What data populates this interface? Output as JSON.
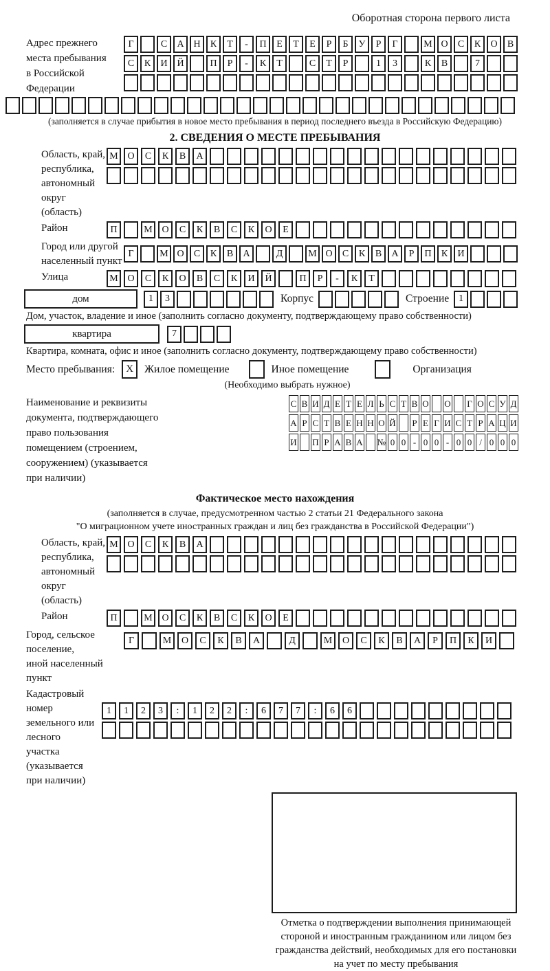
{
  "header": {
    "back_side_note": "Оборотная сторона первого листа"
  },
  "prev_address": {
    "label": "Адрес прежнего\nместа пребывания\nв Российской\nФедерации",
    "rows": [
      {
        "value": "Г САНКТ-ПЕТЕРБУРГ МОСКОВ",
        "length": 24
      },
      {
        "value": "СКИЙ ПР-КТ СТР 13 КВ 7",
        "length": 24
      },
      {
        "value": "",
        "length": 24
      },
      {
        "value": "",
        "length": 31
      }
    ],
    "note": "(заполняется в случае прибытия в новое место пребывания в период последнего въезда в Российскую Федерацию)"
  },
  "section2": {
    "title": "2. СВЕДЕНИЯ О МЕСТЕ ПРЕБЫВАНИЯ",
    "region": {
      "label": "Область, край,\nреспублика,\nавтономный\nокруг (область)",
      "rows": [
        {
          "value": "МОСКВА",
          "length": 24
        },
        {
          "value": "",
          "length": 24
        }
      ]
    },
    "district": {
      "label": "Район",
      "row": {
        "value": "П МОСКВСКОЕ",
        "length": 24
      }
    },
    "city": {
      "label": "Город или другой\nнаселенный пункт",
      "row": {
        "value": "Г МОСКВА Д МОСКВАРПКИ",
        "length": 24
      }
    },
    "street": {
      "label": "Улица",
      "row": {
        "value": "МОСКОВСКИЙ ПР-КТ",
        "length": 24
      }
    },
    "house": {
      "box_label": "дом",
      "cells": {
        "value": "13",
        "length": 8
      },
      "korpus_label": "Корпус",
      "korpus_cells": {
        "value": "",
        "length": 5
      },
      "stroenie_label": "Строение",
      "stroenie_cells": {
        "value": "1",
        "length": 4
      }
    },
    "house_note": "Дом, участок, владение и иное (заполнить согласно документу, подтверждающему право собственности)",
    "apartment": {
      "box_label": "квартира",
      "cells": {
        "value": "7",
        "length": 4
      }
    },
    "apartment_note": "Квартира, комната, офис и иное (заполнить согласно документу, подтверждающему право собственности)",
    "stay_type": {
      "label": "Место пребывания:",
      "options": [
        {
          "label": "Жилое помещение",
          "mark": "X"
        },
        {
          "label": "Иное помещение",
          "mark": ""
        },
        {
          "label": "Организация",
          "mark": ""
        }
      ],
      "hint": "(Необходимо выбрать нужное)"
    },
    "document": {
      "label": "Наименование и реквизиты\nдокумента, подтверждающего\nправо пользования\nпомещением (строением,\nсооружением) (указывается\nпри наличии)",
      "rows": [
        {
          "value": "СВИДЕТЕЛЬСТВО О ГОСУД",
          "length": 21
        },
        {
          "value": "АРСТВЕННОЙ РЕГИСТРАЦИ",
          "length": 21
        },
        {
          "value": "И ПРАВА №00-00-00/000",
          "length": 21
        }
      ]
    }
  },
  "actual_location": {
    "title": "Фактическое место нахождения",
    "note": "(заполняется в случае, предусмотренном частью 2 статьи 21 Федерального закона\n\"О миграционном учете иностранных граждан и лиц без гражданства в Российской Федерации\")",
    "region": {
      "label": "Область, край,\nреспублика,\nавтономный округ\n(область)",
      "rows": [
        {
          "value": "МОСКВА",
          "length": 24
        },
        {
          "value": "",
          "length": 24
        }
      ]
    },
    "district": {
      "label": "Район",
      "row": {
        "value": "П МОСКВСКОЕ",
        "length": 24
      }
    },
    "city": {
      "label": "Город, сельское поселение,\nиной населенный пункт",
      "row": {
        "value": "Г МОСКВА Д МОСКВАРПКИ",
        "length": 22
      }
    },
    "cadastral": {
      "label": "Кадастровый номер\nземельного или лесного\nучастка (указывается\nпри наличии)",
      "rows": [
        {
          "value": "1123:122:677:66",
          "length": 24
        },
        {
          "value": "",
          "length": 24
        }
      ]
    },
    "stamp_caption": "Отметка о подтверждении выполнения принимающей\nстороной и иностранным гражданином или лицом без\nгражданства действий, необходимых для его постановки\nна учет по месту пребывания"
  }
}
